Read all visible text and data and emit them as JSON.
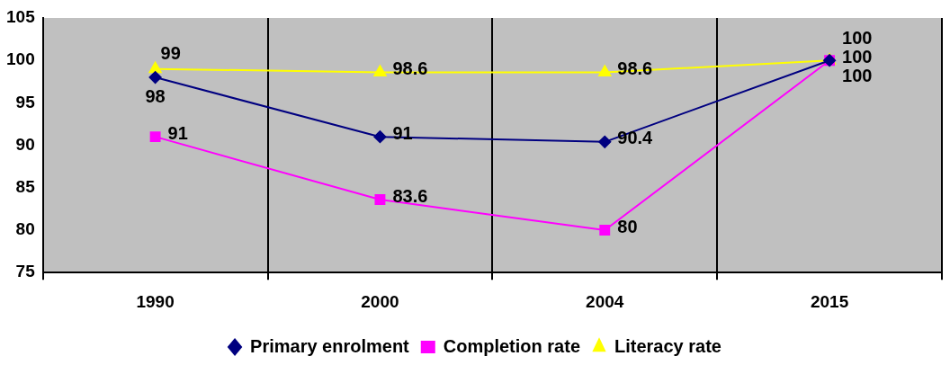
{
  "chart_data": {
    "type": "line",
    "categories": [
      "1990",
      "2000",
      "2004",
      "2015"
    ],
    "series": [
      {
        "name": "Primary enrolment",
        "color": "#000080",
        "marker": "diamond",
        "values": [
          98,
          91,
          90.4,
          100
        ]
      },
      {
        "name": "Completion rate",
        "color": "#ff00ff",
        "marker": "square",
        "values": [
          91,
          83.6,
          80,
          100
        ]
      },
      {
        "name": "Literacy rate",
        "color": "#ffff00",
        "marker": "triangle",
        "values": [
          99,
          98.6,
          98.6,
          100
        ]
      }
    ],
    "ylim": [
      75,
      105
    ],
    "yticks": [
      75,
      80,
      85,
      90,
      95,
      100,
      105
    ],
    "grid": "x",
    "legend": "bottom",
    "data_labels": true
  }
}
